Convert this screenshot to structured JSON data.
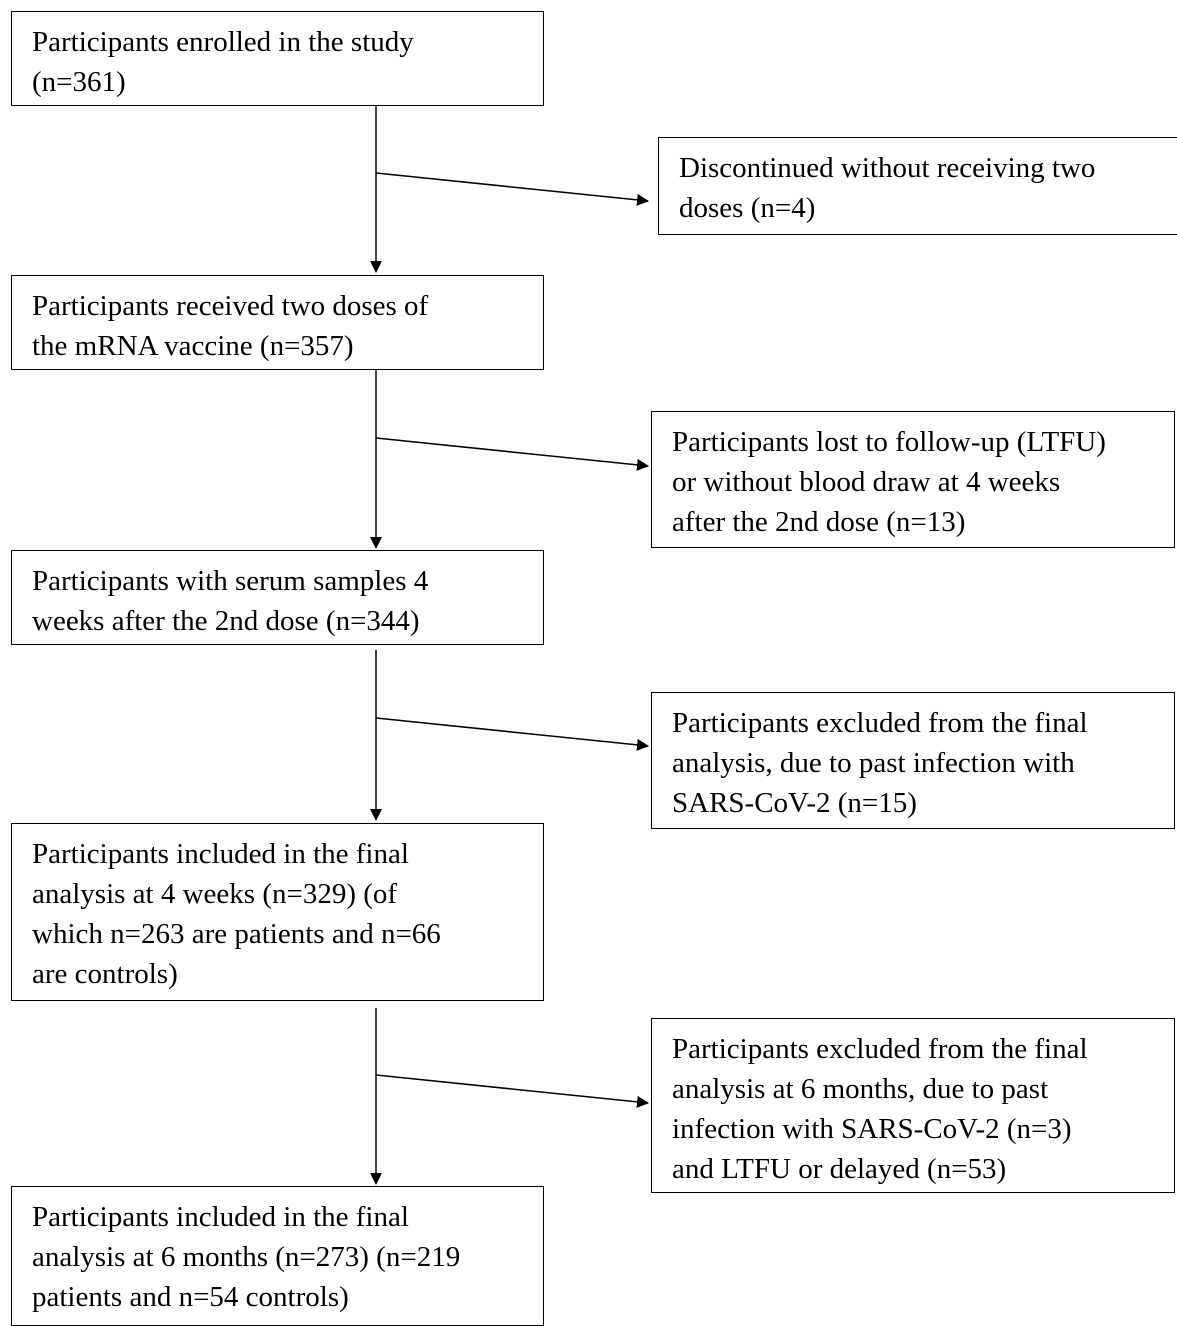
{
  "flow": {
    "enrolled": "Participants enrolled in the study\n(n=361)",
    "discontinued": "Discontinued without receiving two\ndoses (n=4)",
    "received_two_doses": "Participants received two doses of\nthe mRNA vaccine (n=357)",
    "lost_to_followup": "Participants lost to follow-up (LTFU)\nor without blood draw at 4 weeks\nafter the 2nd dose (n=13)",
    "serum_samples": "Participants with serum samples 4\nweeks after the 2nd dose (n=344)",
    "excluded_past_infection": "Participants excluded from the final\nanalysis, due to past infection with\nSARS-CoV-2 (n=15)",
    "included_4_weeks": "Participants included in the final\nanalysis at 4 weeks (n=329) (of\nwhich n=263 are patients and n=66\nare controls)",
    "excluded_6_months": "Participants excluded from the final\nanalysis at 6 months, due to past\ninfection with SARS-CoV-2 (n=3)\nand LTFU or delayed (n=53)",
    "included_6_months": "Participants included in the final\nanalysis at 6 months (n=273) (n=219\npatients and n=54 controls)"
  }
}
